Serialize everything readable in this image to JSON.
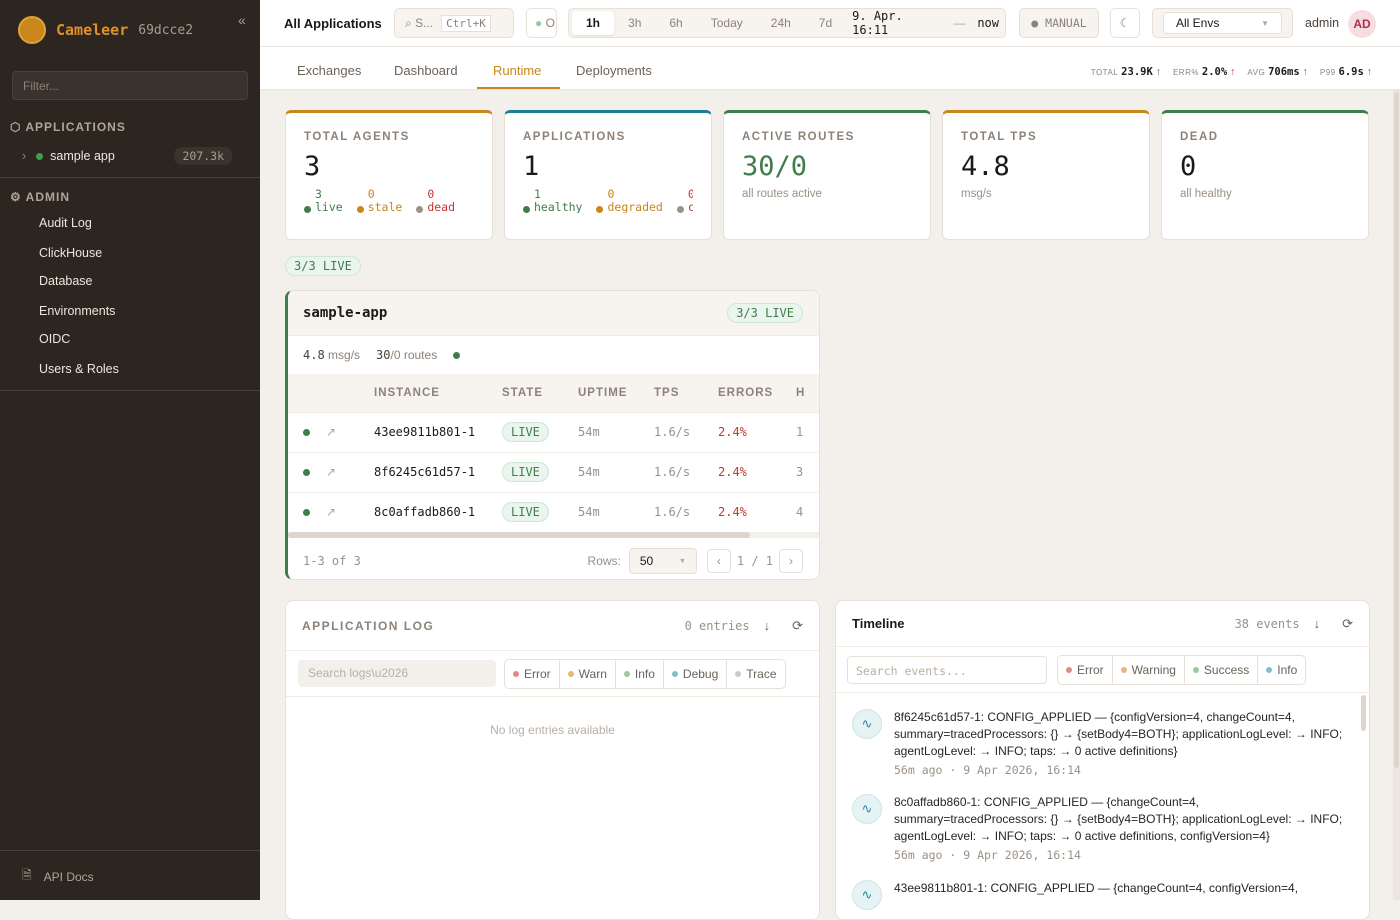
{
  "sidebar": {
    "brand": "Cameleer",
    "version": "69dcce2",
    "filter_placeholder": "Filter...",
    "applications_label": "APPLICATIONS",
    "apps": [
      {
        "name": "sample app",
        "count": "207.3k",
        "status_color": "#3f9d4b"
      }
    ],
    "admin_label": "ADMIN",
    "admin_items": [
      "Audit Log",
      "ClickHouse",
      "Database",
      "Environments",
      "OIDC",
      "Users & Roles"
    ],
    "api_docs": "API Docs"
  },
  "topbar": {
    "title": "All Applications",
    "search_placeholder": "S...",
    "search_shortcut": "Ctrl+K",
    "status_label": "O",
    "ranges": [
      "1h",
      "3h",
      "6h",
      "Today",
      "24h",
      "7d"
    ],
    "active_range": "1h",
    "range_from": "9. Apr. 16:11",
    "range_sep": "—",
    "range_to": "now",
    "manual": "● MANUAL",
    "env": "All Envs",
    "user": "admin",
    "avatar": "AD"
  },
  "tabs": [
    "Exchanges",
    "Dashboard",
    "Runtime",
    "Deployments"
  ],
  "active_tab": "Runtime",
  "kpis": [
    {
      "label": "TOTAL",
      "value": "23.9K",
      "arrow": "↑"
    },
    {
      "label": "ERR%",
      "value": "2.0%",
      "arrow": "↑"
    },
    {
      "label": "AVG",
      "value": "706ms",
      "arrow": "↑"
    },
    {
      "label": "P99",
      "value": "6.9s",
      "arrow": "↑"
    }
  ],
  "cards": [
    {
      "label": "TOTAL AGENTS",
      "value": "3",
      "breakdown": [
        {
          "n": "3",
          "label": "live",
          "color": "#3f7d4b"
        },
        {
          "n": "0",
          "label": "stale",
          "color": "#c8861b"
        },
        {
          "n": "0",
          "label": "dead",
          "color": "#c0392b"
        }
      ]
    },
    {
      "label": "APPLICATIONS",
      "value": "1",
      "breakdown": [
        {
          "n": "1",
          "label": "healthy",
          "color": "#3f7d4b"
        },
        {
          "n": "0",
          "label": "degraded",
          "color": "#c8861b"
        },
        {
          "n": "0",
          "label": "criti",
          "color": "#c0392b"
        }
      ]
    },
    {
      "label": "ACTIVE ROUTES",
      "value": "30/0",
      "sub": "all routes active"
    },
    {
      "label": "TOTAL TPS",
      "value": "4.8",
      "sub": "msg/s"
    },
    {
      "label": "DEAD",
      "value": "0",
      "sub": "all healthy"
    }
  ],
  "live_summary": "3/3 LIVE",
  "app_panel": {
    "name": "sample-app",
    "live": "3/3 LIVE",
    "tps": "4.8",
    "tps_unit": "msg/s",
    "routes": "30",
    "routes_rest": "/0 routes",
    "columns": [
      "INSTANCE",
      "STATE",
      "UPTIME",
      "TPS",
      "ERRORS",
      "H"
    ],
    "rows": [
      {
        "instance": "43ee9811b801-1",
        "state": "LIVE",
        "uptime": "54m",
        "tps": "1.6/s",
        "errors": "2.4%",
        "h": "1"
      },
      {
        "instance": "8f6245c61d57-1",
        "state": "LIVE",
        "uptime": "54m",
        "tps": "1.6/s",
        "errors": "2.4%",
        "h": "3"
      },
      {
        "instance": "8c0affadb860-1",
        "state": "LIVE",
        "uptime": "54m",
        "tps": "1.6/s",
        "errors": "2.4%",
        "h": "4"
      }
    ],
    "range_text": "1-3 of 3",
    "rows_label": "Rows:",
    "rows_value": "50",
    "page": "1 / 1"
  },
  "log": {
    "title": "APPLICATION LOG",
    "entries": "0 entries",
    "search_placeholder": "Search logs\\u2026",
    "levels": [
      {
        "label": "Error",
        "color": "#e08a8a"
      },
      {
        "label": "Warn",
        "color": "#e8b57a"
      },
      {
        "label": "Info",
        "color": "#9cc7a3"
      },
      {
        "label": "Debug",
        "color": "#7fbfcc"
      },
      {
        "label": "Trace",
        "color": "#cfc9c2"
      }
    ],
    "empty": "No log entries available"
  },
  "timeline": {
    "title": "Timeline",
    "count": "38 events",
    "search_placeholder": "Search events...",
    "levels": [
      {
        "label": "Error",
        "color": "#e08a8a"
      },
      {
        "label": "Warning",
        "color": "#e8b57a"
      },
      {
        "label": "Success",
        "color": "#9cc7a3"
      },
      {
        "label": "Info",
        "color": "#7fbfcc"
      }
    ],
    "events": [
      {
        "text": "8f6245c61d57-1: CONFIG_APPLIED — {configVersion=4, changeCount=4, summary=tracedProcessors: {} → {setBody4=BOTH}; applicationLogLevel: → INFO; agentLogLevel: → INFO; taps: → 0 active definitions}",
        "time": "56m ago · 9 Apr 2026, 16:14"
      },
      {
        "text": "8c0affadb860-1: CONFIG_APPLIED — {changeCount=4, summary=tracedProcessors: {} → {setBody4=BOTH}; applicationLogLevel: → INFO; agentLogLevel: → INFO; taps: → 0 active definitions, configVersion=4}",
        "time": "56m ago · 9 Apr 2026, 16:14"
      },
      {
        "text": "43ee9811b801-1: CONFIG_APPLIED — {changeCount=4, configVersion=4,",
        "time": ""
      }
    ]
  }
}
